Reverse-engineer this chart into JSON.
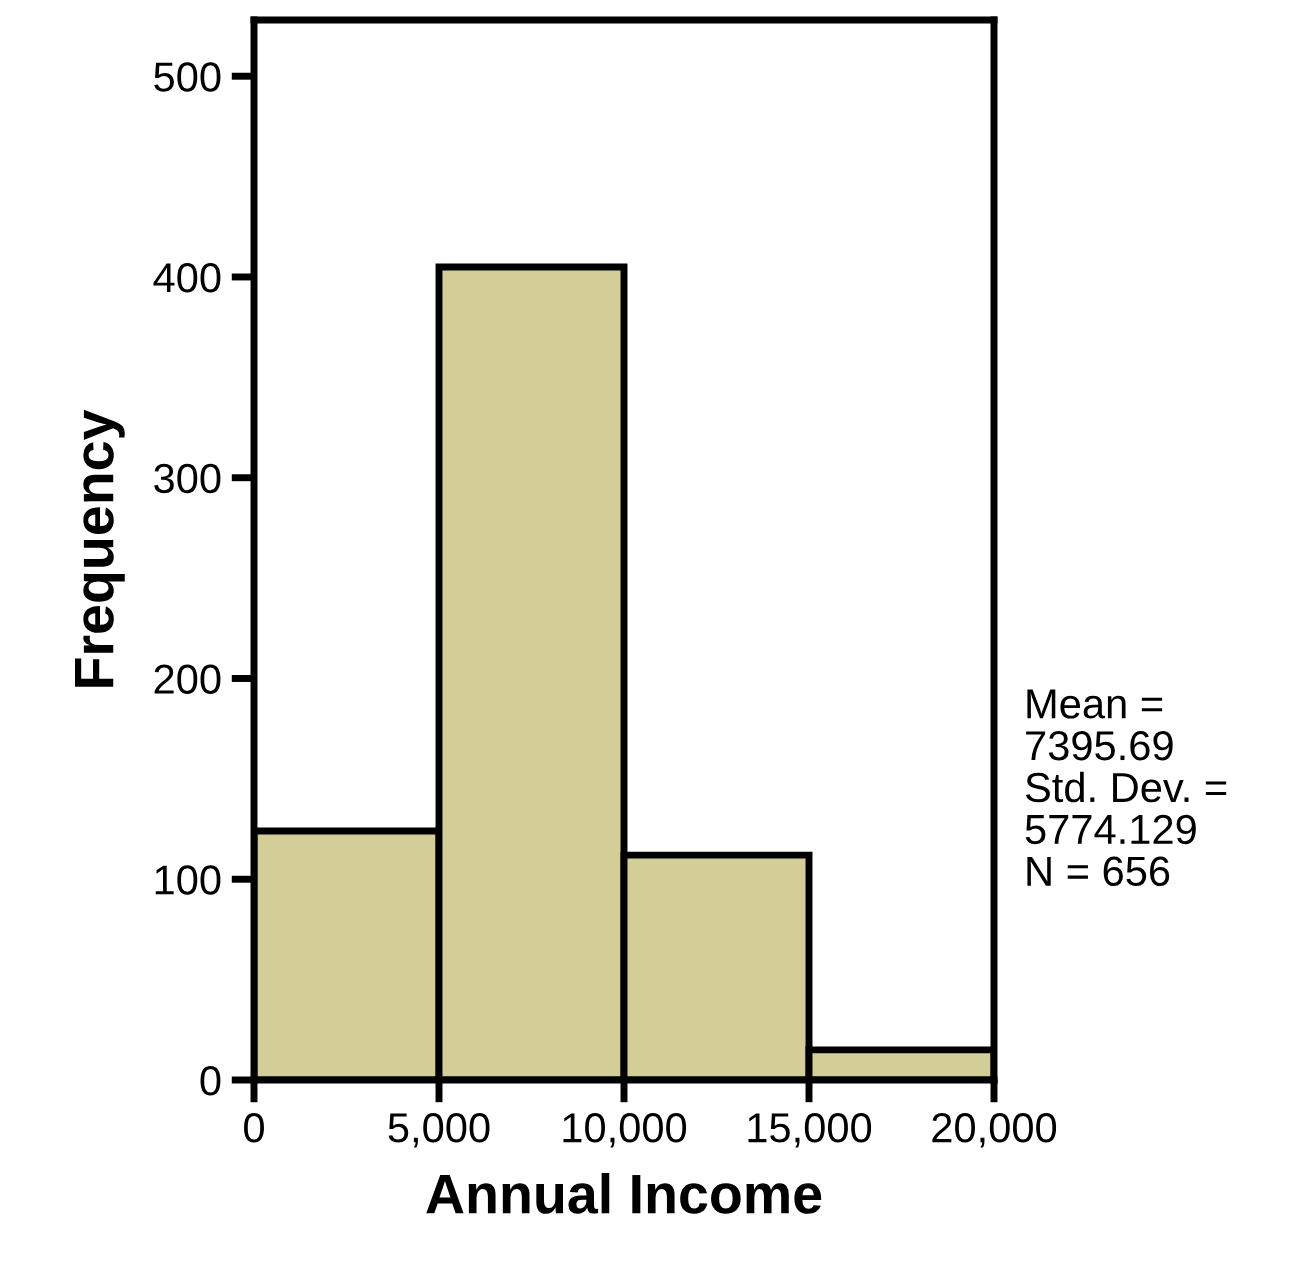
{
  "chart_data": {
    "type": "histogram",
    "xlabel": "Annual Income",
    "ylabel": "Frequency",
    "bins": [
      0,
      5000,
      10000,
      15000,
      20000
    ],
    "values": [
      124,
      405,
      112,
      15
    ],
    "color": "#d3ce98",
    "xlim": [
      0,
      20000
    ],
    "xticks": [
      {
        "value": 0,
        "label": "0"
      },
      {
        "value": 5000,
        "label": "5,000"
      },
      {
        "value": 10000,
        "label": "10,000"
      },
      {
        "value": 15000,
        "label": "15,000"
      },
      {
        "value": 20000,
        "label": "20,000"
      }
    ],
    "ylim": [
      0,
      528
    ],
    "yticks": [
      0,
      100,
      200,
      300,
      400,
      500
    ],
    "grid": false,
    "legend": false,
    "annotations": [
      "Mean =\n7395.69\nStd. Dev. =\n5774.129\nN = 656"
    ]
  }
}
